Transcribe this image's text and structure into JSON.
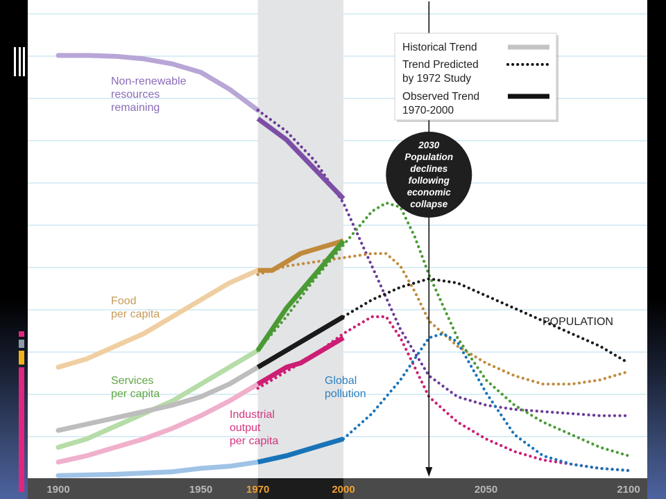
{
  "chart_data": {
    "type": "line",
    "xlim": [
      1900,
      2100
    ],
    "ylim": [
      0,
      100
    ],
    "x_ticks": [
      {
        "value": 1900,
        "label": "1900",
        "color": "#b8b8b8"
      },
      {
        "value": 1950,
        "label": "1950",
        "color": "#b8b8b8"
      },
      {
        "value": 1970,
        "label": "1970",
        "color": "#f0a032"
      },
      {
        "value": 2000,
        "label": "2000",
        "color": "#f0a032"
      },
      {
        "value": 2050,
        "label": "2050",
        "color": "#b8b8b8"
      },
      {
        "value": 2100,
        "label": "2100",
        "color": "#b8b8b8"
      }
    ],
    "shaded_period": [
      1970,
      2000
    ],
    "marker": {
      "year": 2030,
      "annotation": [
        "2030",
        "Population",
        "declines",
        "following",
        "economic",
        "collapse"
      ]
    },
    "legend": {
      "position": "top-right",
      "items": [
        {
          "label": [
            "Historical Trend"
          ],
          "style": "historical"
        },
        {
          "label": [
            "Trend Predicted",
            "by 1972 Study"
          ],
          "style": "predicted"
        },
        {
          "label": [
            "Observed Trend",
            "1970-2000"
          ],
          "style": "observed"
        }
      ]
    },
    "series": [
      {
        "key": "resources",
        "label": [
          "Non-renewable",
          "resources",
          "remaining"
        ],
        "color_hist": "#b7a6d6",
        "color_obs": "#7c4ea6",
        "color_pred": "#6a3a96",
        "historical": [
          [
            1900,
            100
          ],
          [
            1910,
            100
          ],
          [
            1920,
            99.8
          ],
          [
            1930,
            99.2
          ],
          [
            1940,
            98
          ],
          [
            1950,
            96
          ],
          [
            1960,
            92
          ],
          [
            1970,
            87
          ]
        ],
        "observed": [
          [
            1970,
            85
          ],
          [
            1980,
            80
          ],
          [
            1990,
            73
          ],
          [
            2000,
            66
          ]
        ],
        "predicted": [
          [
            1970,
            87
          ],
          [
            1980,
            82
          ],
          [
            1990,
            75
          ],
          [
            2000,
            65
          ],
          [
            2010,
            50
          ],
          [
            2020,
            35
          ],
          [
            2030,
            24
          ],
          [
            2040,
            19
          ],
          [
            2050,
            17
          ],
          [
            2060,
            16
          ],
          [
            2070,
            15.5
          ],
          [
            2080,
            15
          ],
          [
            2090,
            14.5
          ],
          [
            2100,
            14.5
          ]
        ]
      },
      {
        "key": "food",
        "label": [
          "Food",
          "per capita"
        ],
        "color_hist": "#efcfa2",
        "color_obs": "#c08a3c",
        "color_pred": "#c08a3c",
        "historical": [
          [
            1900,
            26
          ],
          [
            1910,
            28
          ],
          [
            1920,
            31
          ],
          [
            1930,
            34
          ],
          [
            1940,
            38
          ],
          [
            1950,
            42
          ],
          [
            1960,
            46
          ],
          [
            1970,
            49
          ]
        ],
        "observed": [
          [
            1970,
            49
          ],
          [
            1975,
            49
          ],
          [
            1980,
            51
          ],
          [
            1985,
            53
          ],
          [
            1990,
            54
          ],
          [
            2000,
            56
          ]
        ],
        "predicted": [
          [
            1970,
            48
          ],
          [
            1980,
            50
          ],
          [
            1990,
            51
          ],
          [
            2000,
            52
          ],
          [
            2010,
            53
          ],
          [
            2015,
            53
          ],
          [
            2020,
            50
          ],
          [
            2025,
            44
          ],
          [
            2030,
            37
          ],
          [
            2040,
            31
          ],
          [
            2050,
            27
          ],
          [
            2060,
            24
          ],
          [
            2070,
            22
          ],
          [
            2080,
            22
          ],
          [
            2090,
            23
          ],
          [
            2100,
            25
          ]
        ]
      },
      {
        "key": "services",
        "label": [
          "Services",
          "per capita"
        ],
        "color_hist": "#b6dca8",
        "color_obs": "#4a9a34",
        "color_pred": "#4a9a34",
        "historical": [
          [
            1900,
            7
          ],
          [
            1910,
            9
          ],
          [
            1920,
            12
          ],
          [
            1930,
            15
          ],
          [
            1940,
            18
          ],
          [
            1950,
            22
          ],
          [
            1960,
            26
          ],
          [
            1970,
            30
          ]
        ],
        "observed": [
          [
            1970,
            30
          ],
          [
            1980,
            40
          ],
          [
            1990,
            48
          ],
          [
            2000,
            56
          ]
        ],
        "predicted": [
          [
            1970,
            30
          ],
          [
            1980,
            38
          ],
          [
            1990,
            47
          ],
          [
            2000,
            55
          ],
          [
            2010,
            63
          ],
          [
            2015,
            65
          ],
          [
            2020,
            64
          ],
          [
            2025,
            57
          ],
          [
            2030,
            48
          ],
          [
            2040,
            33
          ],
          [
            2050,
            23
          ],
          [
            2060,
            17
          ],
          [
            2070,
            13
          ],
          [
            2080,
            10
          ],
          [
            2090,
            7
          ],
          [
            2100,
            5
          ]
        ]
      },
      {
        "key": "industrial",
        "label": [
          "Industrial",
          "output",
          "per capita"
        ],
        "color_hist": "#f0b0cc",
        "color_obs": "#cc1e74",
        "color_pred": "#cc1e74",
        "historical": [
          [
            1900,
            3.5
          ],
          [
            1910,
            5
          ],
          [
            1920,
            7
          ],
          [
            1930,
            9
          ],
          [
            1940,
            11.5
          ],
          [
            1950,
            14.5
          ],
          [
            1960,
            18
          ],
          [
            1970,
            22
          ]
        ],
        "observed": [
          [
            1970,
            22
          ],
          [
            1980,
            26
          ],
          [
            1985,
            27
          ],
          [
            1990,
            29
          ],
          [
            2000,
            33
          ]
        ],
        "predicted": [
          [
            1970,
            21
          ],
          [
            1980,
            25
          ],
          [
            1990,
            29
          ],
          [
            2000,
            34
          ],
          [
            2010,
            38
          ],
          [
            2015,
            38
          ],
          [
            2020,
            33
          ],
          [
            2025,
            26
          ],
          [
            2030,
            19
          ],
          [
            2040,
            13
          ],
          [
            2050,
            9
          ],
          [
            2060,
            6
          ],
          [
            2070,
            4
          ],
          [
            2080,
            3
          ],
          [
            2090,
            2
          ],
          [
            2100,
            1.5
          ]
        ]
      },
      {
        "key": "pollution",
        "label": [
          "Global",
          "pollution"
        ],
        "color_hist": "#9fc3e6",
        "color_obs": "#1873b8",
        "color_pred": "#1873b8",
        "historical": [
          [
            1900,
            0.3
          ],
          [
            1920,
            0.6
          ],
          [
            1940,
            1.2
          ],
          [
            1950,
            2
          ],
          [
            1960,
            2.5
          ],
          [
            1970,
            3.5
          ]
        ],
        "observed": [
          [
            1970,
            3.5
          ],
          [
            1980,
            5
          ],
          [
            1990,
            7
          ],
          [
            2000,
            9
          ]
        ],
        "predicted": [
          [
            2000,
            9
          ],
          [
            2010,
            15
          ],
          [
            2020,
            23
          ],
          [
            2025,
            28
          ],
          [
            2030,
            33
          ],
          [
            2035,
            34
          ],
          [
            2040,
            32
          ],
          [
            2050,
            20
          ],
          [
            2060,
            10
          ],
          [
            2070,
            5
          ],
          [
            2080,
            3
          ],
          [
            2090,
            2
          ],
          [
            2100,
            1.5
          ]
        ]
      },
      {
        "key": "population",
        "label": [
          "POPULATION"
        ],
        "color_hist": "#bdbdbd",
        "color_obs": "#1a1a1a",
        "color_pred": "#1a1a1a",
        "historical": [
          [
            1900,
            11
          ],
          [
            1910,
            12.5
          ],
          [
            1920,
            14
          ],
          [
            1930,
            15.5
          ],
          [
            1940,
            17
          ],
          [
            1950,
            19
          ],
          [
            1960,
            22
          ],
          [
            1970,
            26
          ]
        ],
        "observed": [
          [
            1970,
            26
          ],
          [
            1980,
            30
          ],
          [
            1990,
            34
          ],
          [
            2000,
            38
          ]
        ],
        "predicted": [
          [
            2000,
            38
          ],
          [
            2010,
            42
          ],
          [
            2020,
            45
          ],
          [
            2030,
            47
          ],
          [
            2040,
            46
          ],
          [
            2050,
            43
          ],
          [
            2060,
            40
          ],
          [
            2070,
            37
          ],
          [
            2080,
            34
          ],
          [
            2090,
            31
          ],
          [
            2100,
            27
          ]
        ]
      }
    ]
  }
}
